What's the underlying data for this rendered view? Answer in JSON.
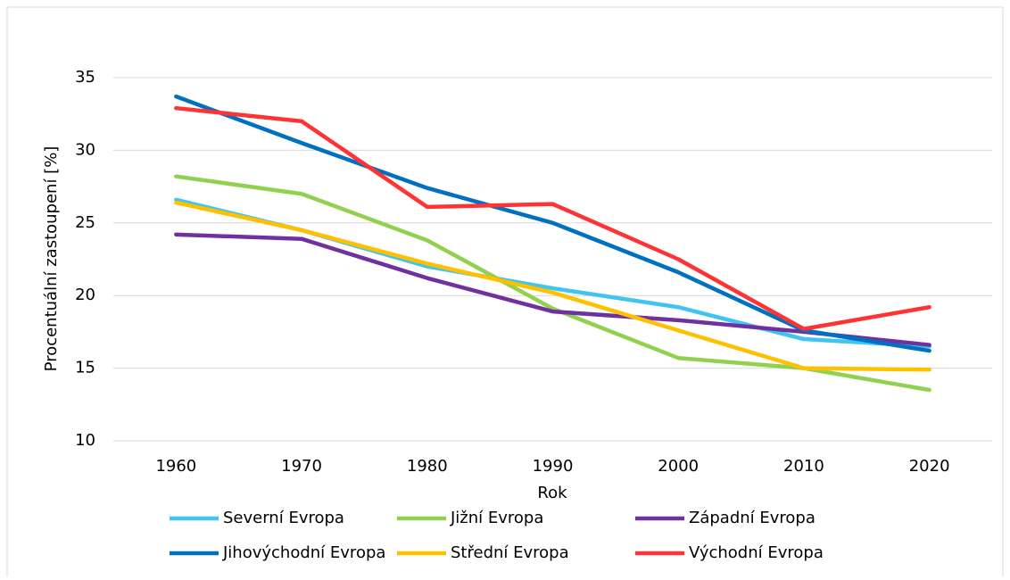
{
  "chart_data": {
    "type": "line",
    "x": [
      1960,
      1970,
      1980,
      1990,
      2000,
      2010,
      2020
    ],
    "y_label": "Procentuální zastoupení [%]",
    "x_label": "Rok",
    "ylim": [
      10,
      35
    ],
    "yticks": [
      10,
      15,
      20,
      25,
      30,
      35
    ],
    "grid": true,
    "legend": "bottom",
    "series": [
      {
        "name": "Severní Evropa",
        "color": "#3fc5f0",
        "values": [
          26.6,
          24.5,
          22.0,
          20.5,
          19.2,
          17.0,
          16.5
        ]
      },
      {
        "name": "Jižní Evropa",
        "color": "#92d050",
        "values": [
          28.2,
          27.0,
          23.8,
          19.1,
          15.7,
          15.0,
          13.5
        ]
      },
      {
        "name": "Západní Evropa",
        "color": "#7030a0",
        "values": [
          24.2,
          23.9,
          21.2,
          18.9,
          18.3,
          17.5,
          16.6
        ]
      },
      {
        "name": "Jihovýchodní Evropa",
        "color": "#0070c0",
        "values": [
          33.7,
          30.5,
          27.4,
          25.0,
          21.6,
          17.6,
          16.2
        ]
      },
      {
        "name": "Střední Evropa",
        "color": "#ffc000",
        "values": [
          26.4,
          24.5,
          22.2,
          20.2,
          17.6,
          15.0,
          14.9
        ]
      },
      {
        "name": "Východní Evropa",
        "color": "#ff3333",
        "values": [
          32.9,
          32.0,
          26.1,
          26.3,
          22.5,
          17.7,
          19.2
        ]
      }
    ]
  }
}
